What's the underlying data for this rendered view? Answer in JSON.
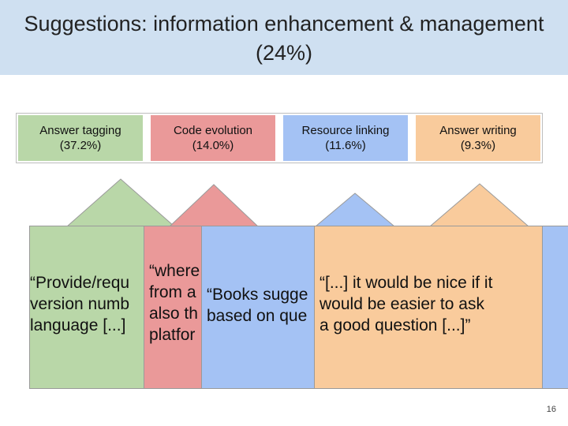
{
  "title": {
    "line1": "Suggestions: information enhancement & management",
    "line2": "(24%)"
  },
  "categories": [
    {
      "label": "Answer tagging",
      "pct": "(37.2%)",
      "color": "#b9d7a8"
    },
    {
      "label": "Code evolution",
      "pct": "(14.0%)",
      "color": "#ea9999"
    },
    {
      "label": "Resource linking",
      "pct": "(11.6%)",
      "color": "#a4c2f4"
    },
    {
      "label": "Answer writing",
      "pct": "(9.3%)",
      "color": "#f9cb9c"
    }
  ],
  "quotes": {
    "green": [
      "“Provide/requ",
      "version numb",
      "language [...]"
    ],
    "red": [
      "“where",
      "from a",
      "also th",
      "platfor"
    ],
    "blue": [
      "“Books sugge",
      "based on que"
    ],
    "orange": [
      "“[...] it would be nice if it",
      "would be easier to ask",
      "a good question [...]”"
    ]
  },
  "page_number": "16"
}
